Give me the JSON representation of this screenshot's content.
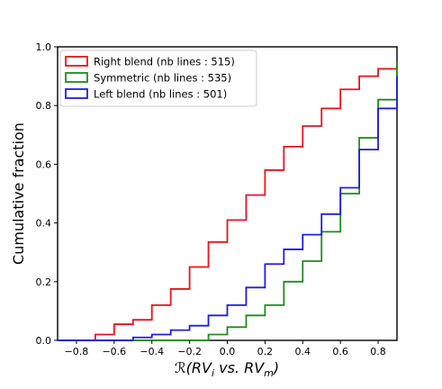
{
  "chart_data": {
    "type": "line",
    "step": true,
    "title": "",
    "xlabel_parts": {
      "script": "ℛ",
      "open": "(RV",
      "sub1": "i",
      "mid": " vs. RV",
      "sub2": "m",
      "close": ")"
    },
    "ylabel": "Cumulative fraction",
    "xlim": [
      -0.9,
      0.9
    ],
    "ylim": [
      0.0,
      1.0
    ],
    "xticks": [
      -0.8,
      -0.6,
      -0.4,
      -0.2,
      0.0,
      0.2,
      0.4,
      0.6,
      0.8
    ],
    "xtick_labels": [
      "−0.8",
      "−0.6",
      "−0.4",
      "−0.2",
      "0.0",
      "0.2",
      "0.4",
      "0.6",
      "0.8"
    ],
    "yticks": [
      0.0,
      0.2,
      0.4,
      0.6,
      0.8,
      1.0
    ],
    "ytick_labels": [
      "0.0",
      "0.2",
      "0.4",
      "0.6",
      "0.8",
      "1.0"
    ],
    "grid": false,
    "legend_position": "top-left",
    "series": [
      {
        "name": "Right blend (nb lines : 515)",
        "color": "#e8141b",
        "x": [
          -0.9,
          -0.7,
          -0.6,
          -0.5,
          -0.4,
          -0.3,
          -0.2,
          -0.1,
          0.0,
          0.1,
          0.2,
          0.3,
          0.4,
          0.5,
          0.6,
          0.7,
          0.8,
          0.9
        ],
        "y": [
          0.0,
          0.02,
          0.055,
          0.07,
          0.12,
          0.175,
          0.25,
          0.335,
          0.41,
          0.495,
          0.58,
          0.66,
          0.73,
          0.79,
          0.855,
          0.9,
          0.925,
          0.95
        ]
      },
      {
        "name": "Symmetric (nb lines : 535)",
        "color": "#1e8c1e",
        "x": [
          -0.9,
          -0.1,
          0.0,
          0.1,
          0.2,
          0.3,
          0.4,
          0.5,
          0.6,
          0.7,
          0.8,
          0.9
        ],
        "y": [
          0.0,
          0.02,
          0.045,
          0.085,
          0.12,
          0.2,
          0.27,
          0.37,
          0.5,
          0.69,
          0.82,
          0.95
        ]
      },
      {
        "name": "Left blend (nb lines : 501)",
        "color": "#1e1edc",
        "x": [
          -0.9,
          -0.5,
          -0.4,
          -0.3,
          -0.2,
          -0.1,
          0.0,
          0.1,
          0.2,
          0.3,
          0.4,
          0.5,
          0.6,
          0.7,
          0.8,
          0.9
        ],
        "y": [
          0.0,
          0.01,
          0.02,
          0.035,
          0.05,
          0.085,
          0.12,
          0.18,
          0.26,
          0.31,
          0.36,
          0.43,
          0.52,
          0.65,
          0.79,
          0.9
        ]
      }
    ]
  }
}
